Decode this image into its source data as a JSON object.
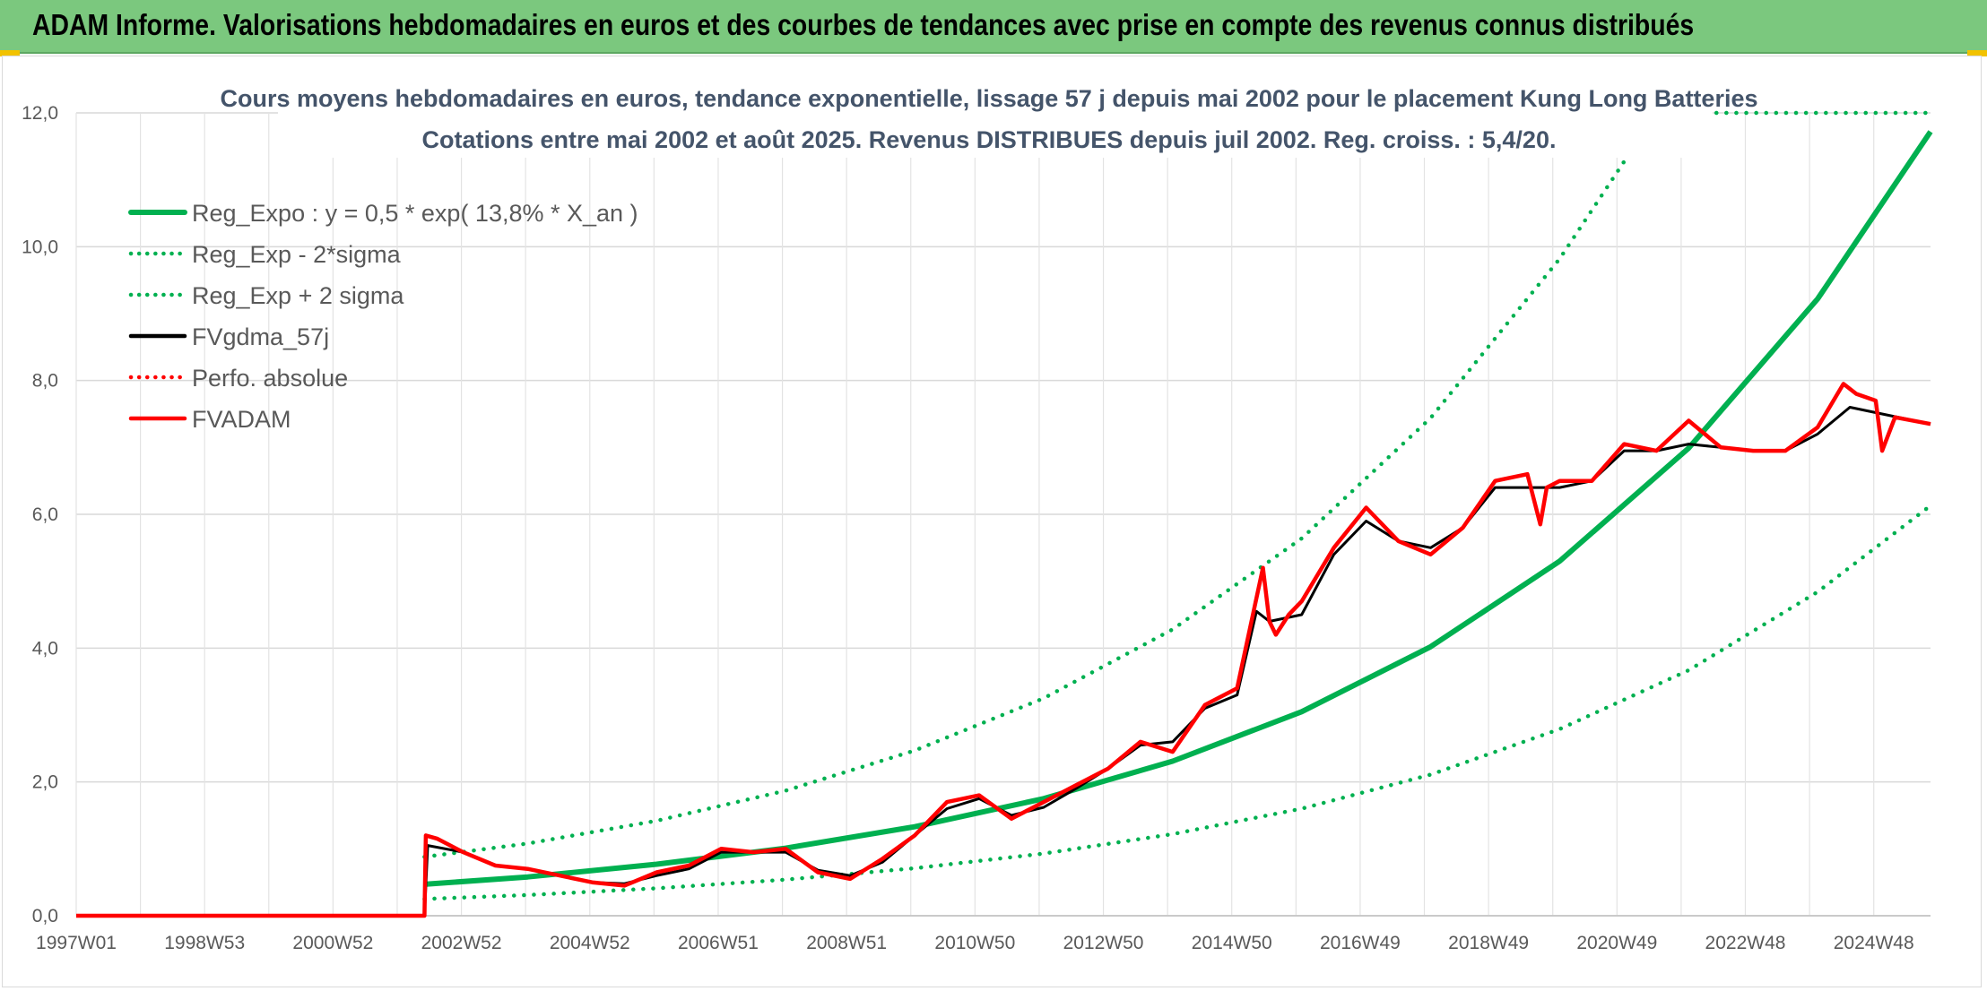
{
  "header": {
    "title": "ADAM Informe. Valorisations hebdomadaires en euros et des courbes de tendances avec prise en compte des revenus connus distribués"
  },
  "chart_data": {
    "type": "line",
    "title": "Cours moyens hebdomadaires en euros, tendance exponentielle, lissage 57 j depuis mai 2002 pour le placement Kung Long Batteries",
    "subtitle": "Cotations entre mai 2002 et août 2025. Revenus DISTRIBUES depuis juil 2002. Reg. croiss. : 5,4/20.",
    "xlabel": "",
    "ylabel": "",
    "ylim": [
      0,
      12
    ],
    "xlim": [
      1997.0,
      2025.75
    ],
    "y_ticks": [
      "0,0",
      "2,0",
      "4,0",
      "6,0",
      "8,0",
      "10,0",
      "12,0"
    ],
    "x_ticks": [
      "1997W01",
      "1998W53",
      "2000W52",
      "2002W52",
      "2004W52",
      "2006W51",
      "2008W51",
      "2010W50",
      "2012W50",
      "2014W50",
      "2016W49",
      "2018W49",
      "2020W49",
      "2022W48",
      "2024W48"
    ],
    "grid": true,
    "legend_position": "top-left",
    "series": [
      {
        "name": "Reg_Expo : y = 0,5 * exp( 13,8% *  X_an )",
        "color": "#00b050",
        "style": "solid",
        "x": [
          2002.4,
          2004,
          2006,
          2008,
          2010,
          2012,
          2014,
          2016,
          2018,
          2020,
          2022,
          2024,
          2025.75
        ],
        "values": [
          0.47,
          0.58,
          0.77,
          1.01,
          1.33,
          1.75,
          2.31,
          3.05,
          4.02,
          5.3,
          6.99,
          9.22,
          11.72
        ]
      },
      {
        "name": "Reg_Exp - 2*sigma",
        "color": "#00b050",
        "style": "dotted",
        "x": [
          2002.4,
          2004,
          2006,
          2008,
          2010,
          2012,
          2014,
          2016,
          2018,
          2020,
          2022,
          2024,
          2025.75
        ],
        "values": [
          0.25,
          0.31,
          0.41,
          0.54,
          0.71,
          0.93,
          1.22,
          1.6,
          2.11,
          2.79,
          3.67,
          4.84,
          6.13
        ]
      },
      {
        "name": "Reg_Exp + 2 sigma",
        "color": "#00b050",
        "style": "dotted",
        "x": [
          2002.4,
          2004,
          2006,
          2008,
          2010,
          2012,
          2014,
          2016,
          2018,
          2020,
          2021.5,
          2022.0,
          2025.75
        ],
        "values": [
          0.88,
          1.08,
          1.42,
          1.87,
          2.47,
          3.25,
          4.28,
          5.64,
          7.44,
          9.82,
          12.0,
          12.0,
          12.0
        ]
      },
      {
        "name": "FVgdma_57j",
        "color": "#000000",
        "style": "solid",
        "x": [
          1997.0,
          2002.4,
          2002.45,
          2003.0,
          2003.5,
          2004.0,
          2004.5,
          2005.0,
          2005.5,
          2006.0,
          2006.5,
          2007.0,
          2007.5,
          2008.0,
          2008.5,
          2009.0,
          2009.5,
          2010.0,
          2010.5,
          2011.0,
          2011.5,
          2012.0,
          2012.5,
          2013.0,
          2013.5,
          2014.0,
          2014.5,
          2015.0,
          2015.3,
          2015.5,
          2016.0,
          2016.5,
          2017.0,
          2017.5,
          2018.0,
          2018.5,
          2019.0,
          2019.5,
          2020.0,
          2020.5,
          2021.0,
          2021.5,
          2022.0,
          2022.5,
          2023.0,
          2023.5,
          2024.0,
          2024.5,
          2025.0,
          2025.75
        ],
        "values": [
          0.0,
          0.0,
          1.05,
          0.95,
          0.75,
          0.7,
          0.6,
          0.5,
          0.48,
          0.6,
          0.7,
          0.95,
          0.95,
          0.95,
          0.68,
          0.6,
          0.8,
          1.2,
          1.6,
          1.75,
          1.5,
          1.62,
          1.9,
          2.2,
          2.55,
          2.6,
          3.1,
          3.3,
          4.55,
          4.4,
          4.5,
          5.4,
          5.9,
          5.6,
          5.5,
          5.8,
          6.4,
          6.4,
          6.4,
          6.5,
          6.95,
          6.95,
          7.05,
          7.0,
          6.95,
          6.95,
          7.2,
          7.6,
          7.5,
          7.35
        ]
      },
      {
        "name": "Perfo. absolue",
        "color": "#ff0000",
        "style": "dotted",
        "x": [],
        "values": []
      },
      {
        "name": "FVADAM",
        "color": "#ff0000",
        "style": "solid",
        "x": [
          1997.0,
          2002.4,
          2002.42,
          2002.6,
          2003.0,
          2003.5,
          2004.0,
          2004.5,
          2005.0,
          2005.5,
          2006.0,
          2006.5,
          2007.0,
          2007.5,
          2008.0,
          2008.5,
          2009.0,
          2009.5,
          2010.0,
          2010.5,
          2011.0,
          2011.5,
          2012.0,
          2012.5,
          2013.0,
          2013.5,
          2014.0,
          2014.5,
          2015.0,
          2015.4,
          2015.5,
          2015.6,
          2015.8,
          2016.0,
          2016.5,
          2017.0,
          2017.5,
          2018.0,
          2018.5,
          2019.0,
          2019.5,
          2019.7,
          2019.8,
          2020.0,
          2020.5,
          2021.0,
          2021.5,
          2022.0,
          2022.5,
          2023.0,
          2023.5,
          2024.0,
          2024.4,
          2024.6,
          2024.9,
          2025.0,
          2025.2,
          2025.75
        ],
        "values": [
          0.0,
          0.0,
          1.2,
          1.15,
          0.95,
          0.75,
          0.7,
          0.6,
          0.5,
          0.45,
          0.65,
          0.75,
          1.0,
          0.95,
          1.0,
          0.65,
          0.55,
          0.85,
          1.2,
          1.7,
          1.8,
          1.45,
          1.7,
          1.95,
          2.2,
          2.6,
          2.45,
          3.15,
          3.4,
          5.2,
          4.4,
          4.2,
          4.5,
          4.7,
          5.5,
          6.1,
          5.6,
          5.4,
          5.8,
          6.5,
          6.6,
          5.85,
          6.4,
          6.5,
          6.5,
          7.05,
          6.95,
          7.4,
          7.0,
          6.95,
          6.95,
          7.3,
          7.95,
          7.8,
          7.7,
          6.95,
          7.45,
          7.35
        ]
      }
    ]
  }
}
